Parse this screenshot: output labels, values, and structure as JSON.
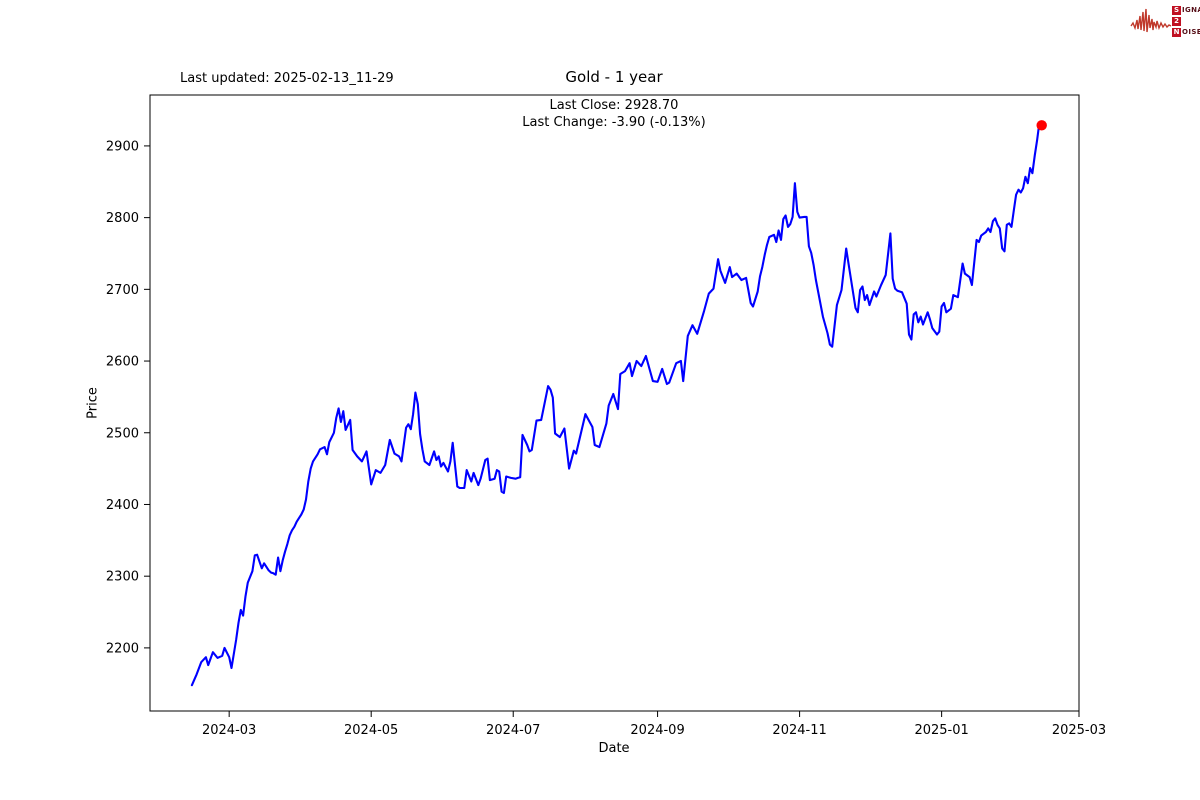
{
  "header": {
    "last_updated": "Last updated: 2025-02-13_11-29"
  },
  "logo": {
    "rows": [
      {
        "boxed": "S",
        "rest": "IGNAL"
      },
      {
        "boxed": "2",
        "rest": ""
      },
      {
        "boxed": "N",
        "rest": "OISE"
      }
    ],
    "wave_color": "#c0392b"
  },
  "chart_data": {
    "type": "line",
    "title": "Gold - 1 year",
    "annotation_lines": [
      "Last Close: 2928.70",
      "Last Change: -3.90 (-0.13%)"
    ],
    "last_close": 2928.7,
    "last_change": -3.9,
    "last_change_pct": -0.13,
    "xlabel": "Date",
    "ylabel": "Price",
    "line_color": "#0000ff",
    "marker_color": "#ff0000",
    "axis_color": "#000000",
    "grid": false,
    "xlim": [
      "2024-01-27",
      "2025-03-01"
    ],
    "ylim": [
      2112,
      2971
    ],
    "x_ticks": [
      "2024-03",
      "2024-05",
      "2024-07",
      "2024-09",
      "2024-11",
      "2025-01",
      "2025-03"
    ],
    "y_ticks": [
      2200,
      2300,
      2400,
      2500,
      2600,
      2700,
      2800,
      2900
    ],
    "series": [
      {
        "name": "Gold",
        "points": [
          [
            "2024-02-14",
            2148
          ],
          [
            "2024-02-16",
            2163
          ],
          [
            "2024-02-18",
            2180
          ],
          [
            "2024-02-20",
            2187
          ],
          [
            "2024-02-21",
            2176
          ],
          [
            "2024-02-23",
            2194
          ],
          [
            "2024-02-25",
            2186
          ],
          [
            "2024-02-27",
            2189
          ],
          [
            "2024-02-28",
            2200
          ],
          [
            "2024-03-01",
            2187
          ],
          [
            "2024-03-02",
            2172
          ],
          [
            "2024-03-04",
            2211
          ],
          [
            "2024-03-05",
            2235
          ],
          [
            "2024-03-06",
            2253
          ],
          [
            "2024-03-07",
            2245
          ],
          [
            "2024-03-08",
            2272
          ],
          [
            "2024-03-09",
            2291
          ],
          [
            "2024-03-11",
            2307
          ],
          [
            "2024-03-12",
            2329
          ],
          [
            "2024-03-13",
            2330
          ],
          [
            "2024-03-15",
            2311
          ],
          [
            "2024-03-16",
            2318
          ],
          [
            "2024-03-18",
            2308
          ],
          [
            "2024-03-19",
            2305
          ],
          [
            "2024-03-20",
            2304
          ],
          [
            "2024-03-21",
            2302
          ],
          [
            "2024-03-22",
            2326
          ],
          [
            "2024-03-23",
            2307
          ],
          [
            "2024-03-24",
            2322
          ],
          [
            "2024-03-25",
            2334
          ],
          [
            "2024-03-26",
            2345
          ],
          [
            "2024-03-27",
            2357
          ],
          [
            "2024-03-28",
            2364
          ],
          [
            "2024-03-29",
            2369
          ],
          [
            "2024-03-30",
            2376
          ],
          [
            "2024-03-31",
            2381
          ],
          [
            "2024-04-01",
            2386
          ],
          [
            "2024-04-02",
            2393
          ],
          [
            "2024-04-03",
            2407
          ],
          [
            "2024-04-04",
            2432
          ],
          [
            "2024-04-05",
            2450
          ],
          [
            "2024-04-06",
            2460
          ],
          [
            "2024-04-08",
            2470
          ],
          [
            "2024-04-09",
            2477
          ],
          [
            "2024-04-11",
            2480
          ],
          [
            "2024-04-12",
            2470
          ],
          [
            "2024-04-13",
            2487
          ],
          [
            "2024-04-15",
            2500
          ],
          [
            "2024-04-16",
            2521
          ],
          [
            "2024-04-17",
            2534
          ],
          [
            "2024-04-18",
            2515
          ],
          [
            "2024-04-19",
            2530
          ],
          [
            "2024-04-20",
            2504
          ],
          [
            "2024-04-22",
            2518
          ],
          [
            "2024-04-23",
            2476
          ],
          [
            "2024-04-25",
            2467
          ],
          [
            "2024-04-27",
            2460
          ],
          [
            "2024-04-29",
            2474
          ],
          [
            "2024-05-01",
            2428
          ],
          [
            "2024-05-03",
            2448
          ],
          [
            "2024-05-05",
            2444
          ],
          [
            "2024-05-07",
            2455
          ],
          [
            "2024-05-09",
            2490
          ],
          [
            "2024-05-11",
            2471
          ],
          [
            "2024-05-13",
            2467
          ],
          [
            "2024-05-14",
            2460
          ],
          [
            "2024-05-16",
            2507
          ],
          [
            "2024-05-17",
            2512
          ],
          [
            "2024-05-18",
            2505
          ],
          [
            "2024-05-19",
            2526
          ],
          [
            "2024-05-20",
            2556
          ],
          [
            "2024-05-21",
            2540
          ],
          [
            "2024-05-22",
            2498
          ],
          [
            "2024-05-23",
            2477
          ],
          [
            "2024-05-24",
            2460
          ],
          [
            "2024-05-26",
            2455
          ],
          [
            "2024-05-28",
            2474
          ],
          [
            "2024-05-29",
            2462
          ],
          [
            "2024-05-30",
            2467
          ],
          [
            "2024-05-31",
            2453
          ],
          [
            "2024-06-01",
            2458
          ],
          [
            "2024-06-03",
            2446
          ],
          [
            "2024-06-04",
            2460
          ],
          [
            "2024-06-05",
            2486
          ],
          [
            "2024-06-07",
            2425
          ],
          [
            "2024-06-08",
            2423
          ],
          [
            "2024-06-10",
            2423
          ],
          [
            "2024-06-11",
            2448
          ],
          [
            "2024-06-13",
            2432
          ],
          [
            "2024-06-14",
            2444
          ],
          [
            "2024-06-16",
            2427
          ],
          [
            "2024-06-17",
            2436
          ],
          [
            "2024-06-19",
            2462
          ],
          [
            "2024-06-20",
            2464
          ],
          [
            "2024-06-21",
            2434
          ],
          [
            "2024-06-23",
            2436
          ],
          [
            "2024-06-24",
            2448
          ],
          [
            "2024-06-25",
            2446
          ],
          [
            "2024-06-26",
            2418
          ],
          [
            "2024-06-27",
            2416
          ],
          [
            "2024-06-28",
            2439
          ],
          [
            "2024-06-30",
            2437
          ],
          [
            "2024-07-02",
            2436
          ],
          [
            "2024-07-03",
            2437
          ],
          [
            "2024-07-04",
            2438
          ],
          [
            "2024-07-05",
            2497
          ],
          [
            "2024-07-07",
            2483
          ],
          [
            "2024-07-08",
            2474
          ],
          [
            "2024-07-09",
            2476
          ],
          [
            "2024-07-11",
            2517
          ],
          [
            "2024-07-13",
            2518
          ],
          [
            "2024-07-16",
            2565
          ],
          [
            "2024-07-17",
            2560
          ],
          [
            "2024-07-18",
            2549
          ],
          [
            "2024-07-19",
            2499
          ],
          [
            "2024-07-21",
            2494
          ],
          [
            "2024-07-23",
            2506
          ],
          [
            "2024-07-25",
            2450
          ],
          [
            "2024-07-27",
            2475
          ],
          [
            "2024-07-28",
            2471
          ],
          [
            "2024-08-01",
            2526
          ],
          [
            "2024-08-02",
            2520
          ],
          [
            "2024-08-04",
            2508
          ],
          [
            "2024-08-05",
            2483
          ],
          [
            "2024-08-07",
            2480
          ],
          [
            "2024-08-10",
            2513
          ],
          [
            "2024-08-11",
            2538
          ],
          [
            "2024-08-13",
            2554
          ],
          [
            "2024-08-15",
            2533
          ],
          [
            "2024-08-16",
            2582
          ],
          [
            "2024-08-18",
            2586
          ],
          [
            "2024-08-20",
            2597
          ],
          [
            "2024-08-21",
            2579
          ],
          [
            "2024-08-23",
            2600
          ],
          [
            "2024-08-25",
            2593
          ],
          [
            "2024-08-27",
            2607
          ],
          [
            "2024-08-30",
            2572
          ],
          [
            "2024-09-01",
            2571
          ],
          [
            "2024-09-03",
            2589
          ],
          [
            "2024-09-05",
            2568
          ],
          [
            "2024-09-06",
            2570
          ],
          [
            "2024-09-09",
            2597
          ],
          [
            "2024-09-11",
            2600
          ],
          [
            "2024-09-12",
            2572
          ],
          [
            "2024-09-14",
            2635
          ],
          [
            "2024-09-16",
            2650
          ],
          [
            "2024-09-18",
            2638
          ],
          [
            "2024-09-21",
            2670
          ],
          [
            "2024-09-23",
            2694
          ],
          [
            "2024-09-25",
            2701
          ],
          [
            "2024-09-27",
            2742
          ],
          [
            "2024-09-28",
            2726
          ],
          [
            "2024-09-30",
            2709
          ],
          [
            "2024-10-02",
            2731
          ],
          [
            "2024-10-03",
            2717
          ],
          [
            "2024-10-05",
            2722
          ],
          [
            "2024-10-07",
            2713
          ],
          [
            "2024-10-09",
            2716
          ],
          [
            "2024-10-11",
            2681
          ],
          [
            "2024-10-12",
            2676
          ],
          [
            "2024-10-14",
            2697
          ],
          [
            "2024-10-15",
            2718
          ],
          [
            "2024-10-16",
            2731
          ],
          [
            "2024-10-17",
            2748
          ],
          [
            "2024-10-18",
            2762
          ],
          [
            "2024-10-19",
            2773
          ],
          [
            "2024-10-21",
            2776
          ],
          [
            "2024-10-22",
            2766
          ],
          [
            "2024-10-23",
            2782
          ],
          [
            "2024-10-24",
            2769
          ],
          [
            "2024-10-25",
            2798
          ],
          [
            "2024-10-26",
            2803
          ],
          [
            "2024-10-27",
            2787
          ],
          [
            "2024-10-28",
            2791
          ],
          [
            "2024-10-29",
            2801
          ],
          [
            "2024-10-30",
            2848
          ],
          [
            "2024-10-31",
            2808
          ],
          [
            "2024-11-01",
            2800
          ],
          [
            "2024-11-03",
            2801
          ],
          [
            "2024-11-04",
            2801
          ],
          [
            "2024-11-05",
            2760
          ],
          [
            "2024-11-06",
            2751
          ],
          [
            "2024-11-07",
            2734
          ],
          [
            "2024-11-08",
            2713
          ],
          [
            "2024-11-11",
            2662
          ],
          [
            "2024-11-13",
            2639
          ],
          [
            "2024-11-14",
            2623
          ],
          [
            "2024-11-15",
            2620
          ],
          [
            "2024-11-17",
            2678
          ],
          [
            "2024-11-19",
            2699
          ],
          [
            "2024-11-21",
            2757
          ],
          [
            "2024-11-22",
            2736
          ],
          [
            "2024-11-25",
            2674
          ],
          [
            "2024-11-26",
            2668
          ],
          [
            "2024-11-27",
            2699
          ],
          [
            "2024-11-28",
            2704
          ],
          [
            "2024-11-29",
            2685
          ],
          [
            "2024-11-30",
            2692
          ],
          [
            "2024-12-01",
            2678
          ],
          [
            "2024-12-03",
            2697
          ],
          [
            "2024-12-04",
            2690
          ],
          [
            "2024-12-06",
            2706
          ],
          [
            "2024-12-08",
            2720
          ],
          [
            "2024-12-10",
            2778
          ],
          [
            "2024-12-11",
            2715
          ],
          [
            "2024-12-12",
            2701
          ],
          [
            "2024-12-13",
            2698
          ],
          [
            "2024-12-15",
            2696
          ],
          [
            "2024-12-17",
            2680
          ],
          [
            "2024-12-18",
            2637
          ],
          [
            "2024-12-19",
            2630
          ],
          [
            "2024-12-20",
            2665
          ],
          [
            "2024-12-21",
            2668
          ],
          [
            "2024-12-22",
            2654
          ],
          [
            "2024-12-23",
            2662
          ],
          [
            "2024-12-24",
            2651
          ],
          [
            "2024-12-26",
            2668
          ],
          [
            "2024-12-27",
            2658
          ],
          [
            "2024-12-28",
            2646
          ],
          [
            "2024-12-30",
            2637
          ],
          [
            "2024-12-31",
            2641
          ],
          [
            "2025-01-01",
            2676
          ],
          [
            "2025-01-02",
            2681
          ],
          [
            "2025-01-03",
            2668
          ],
          [
            "2025-01-05",
            2673
          ],
          [
            "2025-01-06",
            2692
          ],
          [
            "2025-01-08",
            2689
          ],
          [
            "2025-01-10",
            2736
          ],
          [
            "2025-01-11",
            2722
          ],
          [
            "2025-01-13",
            2717
          ],
          [
            "2025-01-14",
            2706
          ],
          [
            "2025-01-16",
            2769
          ],
          [
            "2025-01-17",
            2766
          ],
          [
            "2025-01-18",
            2775
          ],
          [
            "2025-01-20",
            2780
          ],
          [
            "2025-01-21",
            2785
          ],
          [
            "2025-01-22",
            2780
          ],
          [
            "2025-01-23",
            2795
          ],
          [
            "2025-01-24",
            2799
          ],
          [
            "2025-01-25",
            2790
          ],
          [
            "2025-01-26",
            2785
          ],
          [
            "2025-01-27",
            2757
          ],
          [
            "2025-01-28",
            2753
          ],
          [
            "2025-01-29",
            2790
          ],
          [
            "2025-01-30",
            2792
          ],
          [
            "2025-01-31",
            2787
          ],
          [
            "2025-02-01",
            2810
          ],
          [
            "2025-02-02",
            2832
          ],
          [
            "2025-02-03",
            2839
          ],
          [
            "2025-02-04",
            2835
          ],
          [
            "2025-02-05",
            2841
          ],
          [
            "2025-02-06",
            2857
          ],
          [
            "2025-02-07",
            2848
          ],
          [
            "2025-02-08",
            2869
          ],
          [
            "2025-02-09",
            2862
          ],
          [
            "2025-02-10",
            2887
          ],
          [
            "2025-02-11",
            2908
          ],
          [
            "2025-02-12",
            2932.6
          ],
          [
            "2025-02-13",
            2928.7
          ]
        ]
      }
    ]
  }
}
